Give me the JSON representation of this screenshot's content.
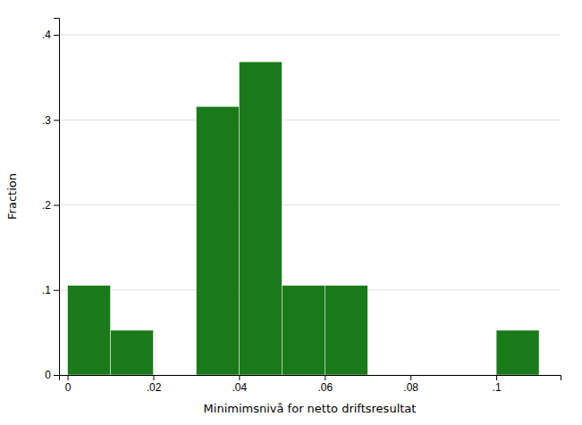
{
  "chart_data": {
    "type": "histogram",
    "xlabel": "Minimimsnivå for netto driftsresultat",
    "ylabel": "Fraction",
    "bin_left": [
      0.0,
      0.01,
      0.03,
      0.04,
      0.05,
      0.06,
      0.1
    ],
    "bin_right": [
      0.01,
      0.02,
      0.04,
      0.05,
      0.06,
      0.07,
      0.11
    ],
    "values": [
      0.1053,
      0.0526,
      0.3158,
      0.3684,
      0.1053,
      0.1053,
      0.0526
    ],
    "color": "#1a7a1a",
    "xlim": [
      -0.002,
      0.115
    ],
    "ylim": [
      0,
      0.42
    ],
    "xticks": [
      0,
      {
        "value": 0.02,
        "label": ".02"
      },
      {
        "value": 0.04,
        "label": ".04"
      },
      {
        "value": 0.06,
        "label": ".06"
      },
      {
        "value": 0.08,
        "label": ".08"
      },
      {
        "value": 0.1,
        "label": ".1"
      }
    ],
    "yticks": [
      0,
      {
        "value": 0.1,
        "label": ".1"
      },
      {
        "value": 0.2,
        "label": ".2"
      },
      {
        "value": 0.3,
        "label": ".3"
      },
      {
        "value": 0.4,
        "label": ".4"
      }
    ],
    "grid": true
  }
}
